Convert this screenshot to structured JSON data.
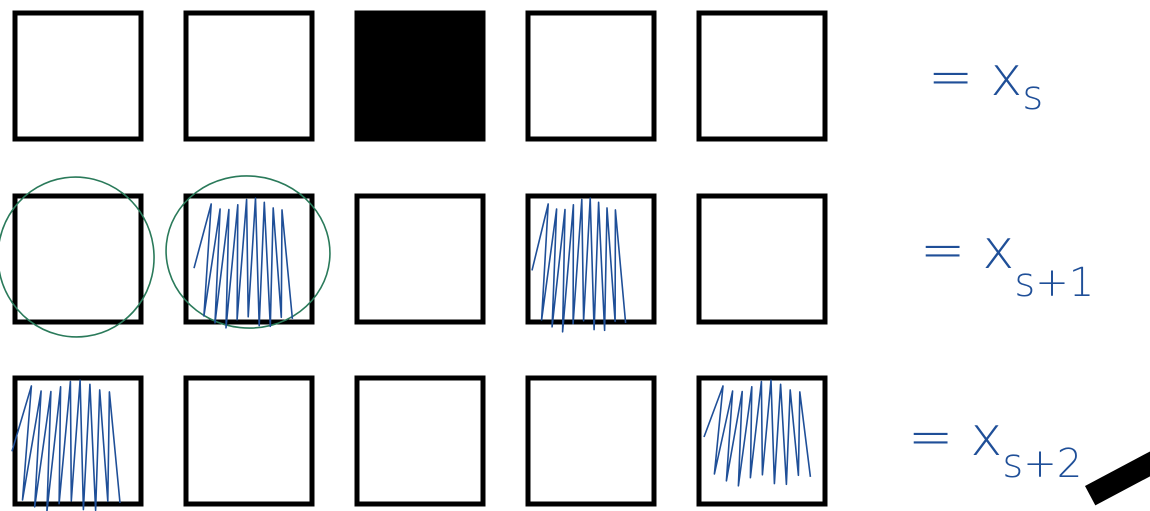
{
  "rows": [
    {
      "label": "= x",
      "subscript": "s"
    },
    {
      "label": "= x",
      "subscript": "s+1"
    },
    {
      "label": "= x",
      "subscript": "s+2"
    }
  ]
}
